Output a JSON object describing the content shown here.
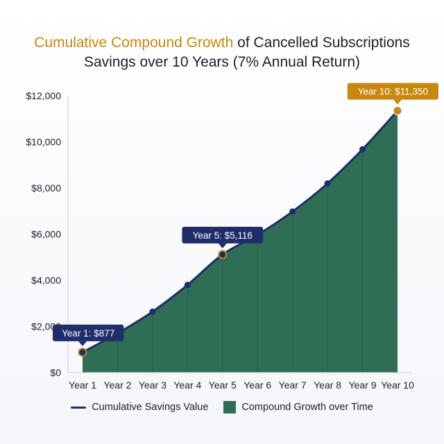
{
  "title": {
    "highlight": "Cumulative Compound Growth",
    "rest": " of Cancelled Subscriptions",
    "line2": "Savings over 10 Years (7% Annual Return)"
  },
  "colors": {
    "title_highlight": "#c8870e",
    "line": "#1f2d6b",
    "area": "#2f6e55",
    "callout_blue": "#1f2d6b",
    "callout_gold": "#c8870e"
  },
  "legend": {
    "line_label": "Cumulative Savings Value",
    "area_label": "Compound Growth over Time"
  },
  "chart_data": {
    "type": "area",
    "categories": [
      "Year 1",
      "Year 2",
      "Year 3",
      "Year 4",
      "Year 5",
      "Year 6",
      "Year 7",
      "Year 8",
      "Year 9",
      "Year 10"
    ],
    "series": [
      {
        "values": [
          877,
          1700,
          2640,
          3800,
          5116,
          5970,
          6980,
          8200,
          9680,
          11350
        ]
      }
    ],
    "y_ticks": [
      0,
      2000,
      4000,
      6000,
      8000,
      10000,
      12000
    ],
    "y_tick_labels": [
      "$0",
      "$2,000",
      "$4,000",
      "$6,000",
      "$8,000",
      "$10,000",
      "$12,000"
    ],
    "ylim": [
      0,
      12000
    ],
    "grid": false,
    "legend_position": "bottom",
    "annotations": [
      {
        "index": 0,
        "text": "Year 1: $877",
        "style": "blue"
      },
      {
        "index": 4,
        "text": "Year 5: $5,116",
        "style": "blue"
      },
      {
        "index": 9,
        "text": "Year 10: $11,350",
        "style": "gold"
      }
    ]
  }
}
